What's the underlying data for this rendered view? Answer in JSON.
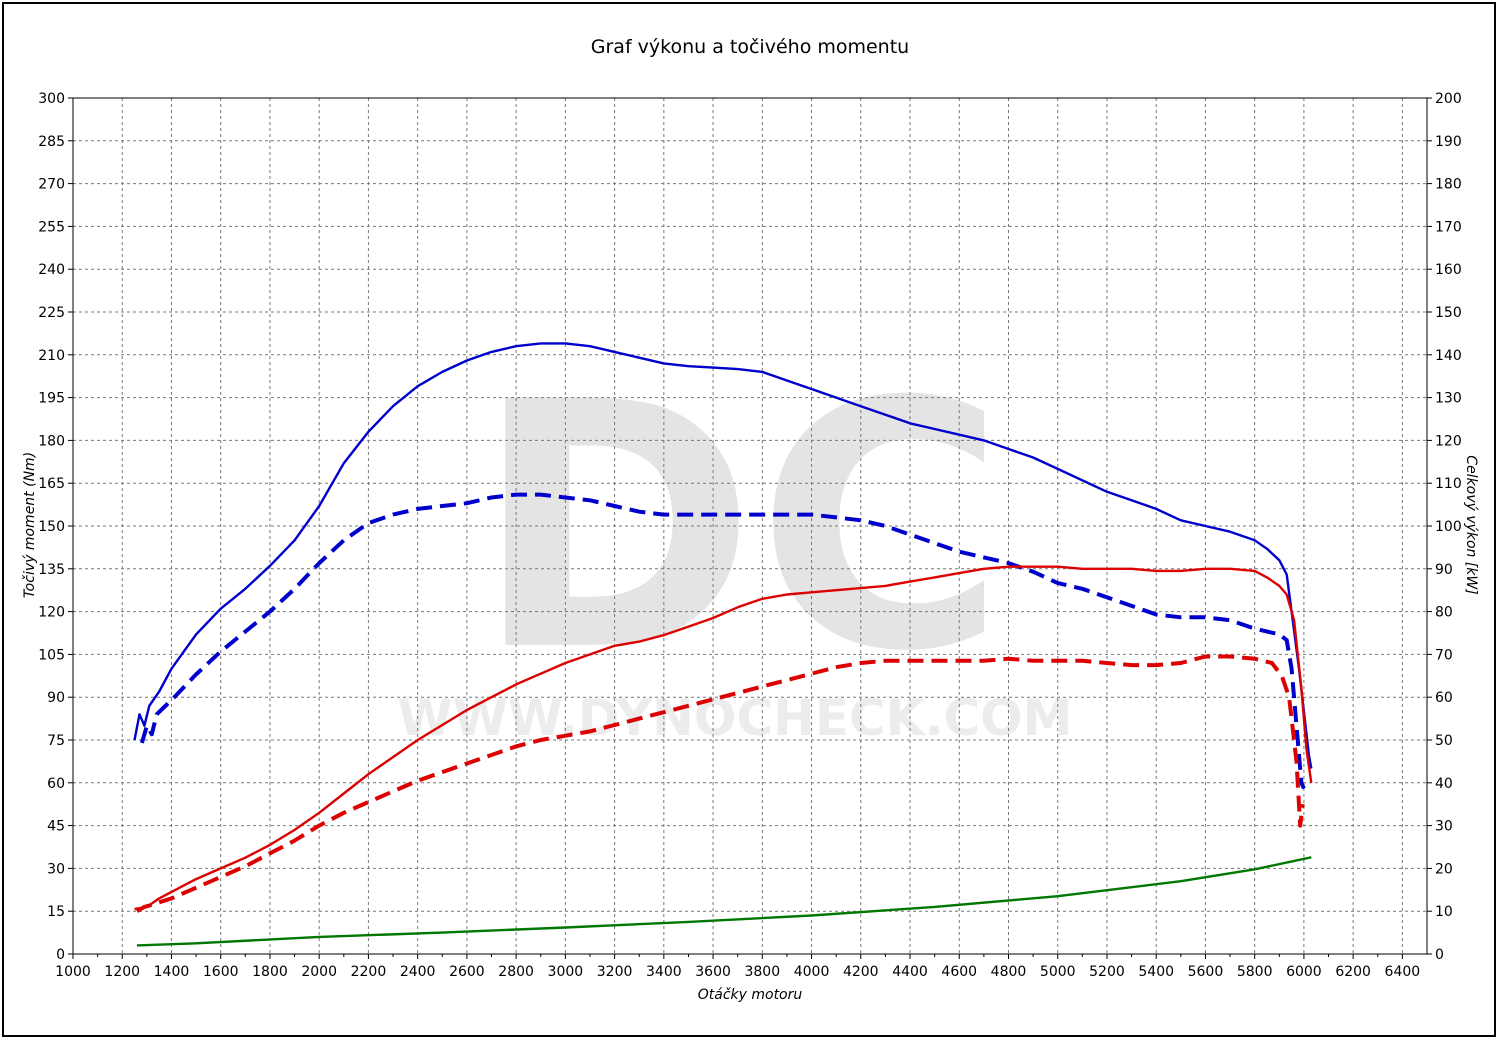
{
  "chart_data": {
    "type": "line",
    "title": "Graf výkonu a točivého momentu",
    "xlabel": "Otáčky motoru",
    "ylabel_left": "Točivý moment (Nm)",
    "ylabel_right": "Celkový výkon [kW]",
    "xlim": [
      1000,
      6500
    ],
    "ylim_left": [
      0,
      300
    ],
    "ylim_right": [
      0,
      200
    ],
    "x_ticks": [
      1000,
      1200,
      1400,
      1600,
      1800,
      2000,
      2200,
      2400,
      2600,
      2800,
      3000,
      3200,
      3400,
      3600,
      3800,
      4000,
      4200,
      4400,
      4600,
      4800,
      5000,
      5200,
      5400,
      5600,
      5800,
      6000,
      6200,
      6400
    ],
    "y_left_ticks": [
      0,
      15,
      30,
      45,
      60,
      75,
      90,
      105,
      120,
      135,
      150,
      165,
      180,
      195,
      210,
      225,
      240,
      255,
      270,
      285,
      300
    ],
    "y_right_ticks": [
      0,
      10,
      20,
      30,
      40,
      50,
      60,
      70,
      80,
      90,
      100,
      110,
      120,
      130,
      140,
      150,
      160,
      170,
      180,
      190,
      200
    ],
    "grid": true,
    "watermark": {
      "letters": "DC",
      "url": "WWW.DYNOCHECK.COM"
    },
    "colors": {
      "torque": "#0000cc",
      "power": "#dd0000",
      "loss": "#007700"
    },
    "series": [
      {
        "axis": "left",
        "style": "solid",
        "color": "#0000cc",
        "points": [
          [
            1250,
            75
          ],
          [
            1270,
            84
          ],
          [
            1290,
            80
          ],
          [
            1310,
            87
          ],
          [
            1350,
            92
          ],
          [
            1400,
            100
          ],
          [
            1500,
            112
          ],
          [
            1600,
            121
          ],
          [
            1700,
            128
          ],
          [
            1800,
            136
          ],
          [
            1900,
            145
          ],
          [
            2000,
            157
          ],
          [
            2100,
            172
          ],
          [
            2200,
            183
          ],
          [
            2300,
            192
          ],
          [
            2400,
            199
          ],
          [
            2500,
            204
          ],
          [
            2600,
            208
          ],
          [
            2700,
            211
          ],
          [
            2800,
            213
          ],
          [
            2900,
            214
          ],
          [
            3000,
            214
          ],
          [
            3100,
            213
          ],
          [
            3200,
            211
          ],
          [
            3300,
            209
          ],
          [
            3400,
            207
          ],
          [
            3500,
            206
          ],
          [
            3600,
            205.5
          ],
          [
            3700,
            205
          ],
          [
            3800,
            204
          ],
          [
            3900,
            201
          ],
          [
            4000,
            198
          ],
          [
            4100,
            195
          ],
          [
            4200,
            192
          ],
          [
            4300,
            189
          ],
          [
            4400,
            186
          ],
          [
            4500,
            184
          ],
          [
            4600,
            182
          ],
          [
            4700,
            180
          ],
          [
            4800,
            177
          ],
          [
            4900,
            174
          ],
          [
            5000,
            170
          ],
          [
            5100,
            166
          ],
          [
            5200,
            162
          ],
          [
            5300,
            159
          ],
          [
            5400,
            156
          ],
          [
            5500,
            152
          ],
          [
            5600,
            150
          ],
          [
            5700,
            148
          ],
          [
            5800,
            145
          ],
          [
            5850,
            142
          ],
          [
            5900,
            138
          ],
          [
            5930,
            133
          ],
          [
            5950,
            120
          ],
          [
            5980,
            100
          ],
          [
            6000,
            85
          ],
          [
            6020,
            70
          ],
          [
            6030,
            65
          ]
        ]
      },
      {
        "axis": "left",
        "style": "dashed",
        "color": "#0000cc",
        "points": [
          [
            1280,
            74
          ],
          [
            1300,
            80
          ],
          [
            1320,
            77
          ],
          [
            1340,
            84
          ],
          [
            1400,
            89
          ],
          [
            1500,
            98
          ],
          [
            1600,
            106
          ],
          [
            1700,
            113
          ],
          [
            1800,
            120
          ],
          [
            1900,
            128
          ],
          [
            2000,
            137
          ],
          [
            2100,
            145
          ],
          [
            2200,
            151
          ],
          [
            2300,
            154
          ],
          [
            2400,
            156
          ],
          [
            2500,
            157
          ],
          [
            2600,
            158
          ],
          [
            2700,
            160
          ],
          [
            2800,
            161
          ],
          [
            2900,
            161
          ],
          [
            3000,
            160
          ],
          [
            3100,
            159
          ],
          [
            3200,
            157
          ],
          [
            3300,
            155
          ],
          [
            3400,
            154
          ],
          [
            3500,
            154
          ],
          [
            3600,
            154
          ],
          [
            3700,
            154
          ],
          [
            3800,
            154
          ],
          [
            3900,
            154
          ],
          [
            4000,
            154
          ],
          [
            4100,
            153
          ],
          [
            4200,
            152
          ],
          [
            4300,
            150
          ],
          [
            4400,
            147
          ],
          [
            4500,
            144
          ],
          [
            4600,
            141
          ],
          [
            4700,
            139
          ],
          [
            4800,
            137
          ],
          [
            4900,
            134
          ],
          [
            5000,
            130
          ],
          [
            5100,
            128
          ],
          [
            5200,
            125
          ],
          [
            5300,
            122
          ],
          [
            5400,
            119
          ],
          [
            5500,
            118
          ],
          [
            5600,
            118
          ],
          [
            5700,
            117
          ],
          [
            5800,
            114
          ],
          [
            5900,
            112
          ],
          [
            5930,
            110
          ],
          [
            5950,
            100
          ],
          [
            5970,
            80
          ],
          [
            5990,
            60
          ],
          [
            6000,
            58
          ]
        ]
      },
      {
        "axis": "right",
        "style": "solid",
        "color": "#dd0000",
        "points": [
          [
            1250,
            10.5
          ],
          [
            1300,
            11
          ],
          [
            1350,
            13
          ],
          [
            1400,
            14.5
          ],
          [
            1500,
            17.5
          ],
          [
            1600,
            20
          ],
          [
            1700,
            22.5
          ],
          [
            1800,
            25.5
          ],
          [
            1900,
            29
          ],
          [
            2000,
            33
          ],
          [
            2100,
            37.5
          ],
          [
            2200,
            42
          ],
          [
            2300,
            46
          ],
          [
            2400,
            50
          ],
          [
            2500,
            53.5
          ],
          [
            2600,
            57
          ],
          [
            2700,
            60
          ],
          [
            2800,
            63
          ],
          [
            2900,
            65.5
          ],
          [
            3000,
            68
          ],
          [
            3100,
            70
          ],
          [
            3200,
            72
          ],
          [
            3300,
            73
          ],
          [
            3400,
            74.5
          ],
          [
            3500,
            76.5
          ],
          [
            3600,
            78.5
          ],
          [
            3700,
            81
          ],
          [
            3800,
            83
          ],
          [
            3900,
            84
          ],
          [
            4000,
            84.5
          ],
          [
            4100,
            85
          ],
          [
            4200,
            85.5
          ],
          [
            4300,
            86
          ],
          [
            4400,
            87
          ],
          [
            4500,
            88
          ],
          [
            4600,
            89
          ],
          [
            4700,
            90
          ],
          [
            4800,
            90.5
          ],
          [
            4900,
            90.5
          ],
          [
            5000,
            90.5
          ],
          [
            5100,
            90
          ],
          [
            5200,
            90
          ],
          [
            5300,
            90
          ],
          [
            5400,
            89.5
          ],
          [
            5500,
            89.5
          ],
          [
            5600,
            90
          ],
          [
            5700,
            90
          ],
          [
            5800,
            89.5
          ],
          [
            5850,
            88
          ],
          [
            5900,
            86
          ],
          [
            5930,
            84
          ],
          [
            5960,
            78
          ],
          [
            5990,
            62
          ],
          [
            6010,
            48
          ],
          [
            6030,
            40
          ]
        ]
      },
      {
        "axis": "right",
        "style": "dashed",
        "color": "#dd0000",
        "points": [
          [
            1260,
            10
          ],
          [
            1290,
            11
          ],
          [
            1320,
            11.5
          ],
          [
            1400,
            13
          ],
          [
            1500,
            15.5
          ],
          [
            1600,
            18
          ],
          [
            1700,
            20.5
          ],
          [
            1800,
            23.5
          ],
          [
            1900,
            26.5
          ],
          [
            2000,
            30
          ],
          [
            2100,
            33
          ],
          [
            2200,
            35.5
          ],
          [
            2300,
            38
          ],
          [
            2400,
            40.5
          ],
          [
            2500,
            42.5
          ],
          [
            2600,
            44.5
          ],
          [
            2700,
            46.5
          ],
          [
            2800,
            48.5
          ],
          [
            2900,
            50
          ],
          [
            3000,
            51
          ],
          [
            3100,
            52
          ],
          [
            3200,
            53.5
          ],
          [
            3300,
            55
          ],
          [
            3400,
            56.5
          ],
          [
            3500,
            58
          ],
          [
            3600,
            59.5
          ],
          [
            3700,
            61
          ],
          [
            3800,
            62.5
          ],
          [
            3900,
            64
          ],
          [
            4000,
            65.5
          ],
          [
            4100,
            67
          ],
          [
            4200,
            68
          ],
          [
            4300,
            68.5
          ],
          [
            4400,
            68.5
          ],
          [
            4500,
            68.5
          ],
          [
            4600,
            68.5
          ],
          [
            4700,
            68.5
          ],
          [
            4800,
            69
          ],
          [
            4900,
            68.5
          ],
          [
            5000,
            68.5
          ],
          [
            5100,
            68.5
          ],
          [
            5200,
            68
          ],
          [
            5300,
            67.5
          ],
          [
            5400,
            67.5
          ],
          [
            5500,
            68
          ],
          [
            5600,
            69.5
          ],
          [
            5700,
            69.5
          ],
          [
            5800,
            69
          ],
          [
            5870,
            68
          ],
          [
            5910,
            65
          ],
          [
            5940,
            60
          ],
          [
            5970,
            45
          ],
          [
            5985,
            30
          ],
          [
            5995,
            35
          ]
        ]
      },
      {
        "axis": "right",
        "style": "solid",
        "color": "#007700",
        "points": [
          [
            1260,
            2
          ],
          [
            1500,
            2.5
          ],
          [
            2000,
            4
          ],
          [
            2500,
            5
          ],
          [
            3000,
            6.2
          ],
          [
            3500,
            7.5
          ],
          [
            4000,
            9
          ],
          [
            4500,
            11
          ],
          [
            5000,
            13.5
          ],
          [
            5500,
            17
          ],
          [
            5800,
            19.8
          ],
          [
            6030,
            22.6
          ]
        ]
      }
    ]
  }
}
